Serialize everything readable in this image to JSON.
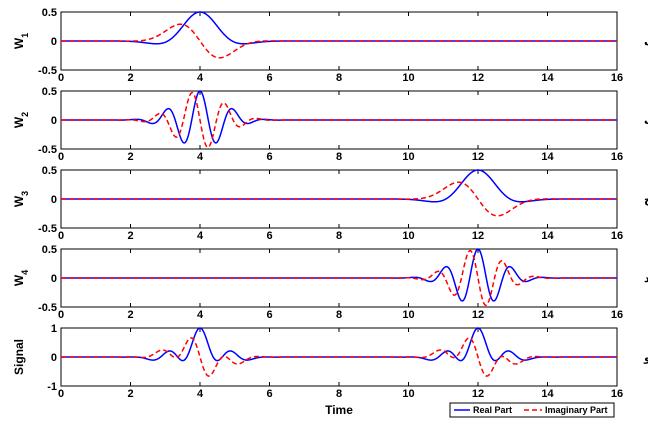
{
  "chart_data": {
    "type": "line",
    "xlabel": "Time",
    "xlim": [
      0,
      16
    ],
    "xticks": [
      0,
      2,
      4,
      6,
      8,
      10,
      12,
      14,
      16
    ],
    "legend": {
      "placement": "bottom-right",
      "entries": [
        {
          "name": "Real Part",
          "color": "#0000ff",
          "style": "solid"
        },
        {
          "name": "Imaginary Part",
          "color": "#ff0000",
          "style": "dashed"
        }
      ]
    },
    "colors": {
      "real": "#0000ff",
      "imag": "#ff0000"
    },
    "panels": [
      {
        "ylabel": "W",
        "ylabel_sub": "1",
        "tag": "(الف",
        "ylim": [
          -0.5,
          0.5
        ],
        "yticks": [
          "0.5",
          "0",
          "-0.5"
        ],
        "components": [
          {
            "t0": 4,
            "amp": 0.5,
            "freq": 0.27,
            "sigma": 0.68
          }
        ]
      },
      {
        "ylabel": "W",
        "ylabel_sub": "2",
        "tag": "(ب",
        "ylim": [
          -0.5,
          0.5
        ],
        "yticks": [
          "0.5",
          "0",
          "-0.5"
        ],
        "components": [
          {
            "t0": 4,
            "amp": 0.5,
            "freq": 1.05,
            "sigma": 0.68
          }
        ]
      },
      {
        "ylabel": "W",
        "ylabel_sub": "3",
        "tag": "(ج",
        "ylim": [
          -0.5,
          0.5
        ],
        "yticks": [
          "0.5",
          "0",
          "-0.5"
        ],
        "components": [
          {
            "t0": 12,
            "amp": 0.5,
            "freq": 0.27,
            "sigma": 0.68
          }
        ]
      },
      {
        "ylabel": "W",
        "ylabel_sub": "4",
        "tag": "(د",
        "ylim": [
          -0.5,
          0.5
        ],
        "yticks": [
          "0.5",
          "0",
          "-0.5"
        ],
        "components": [
          {
            "t0": 12,
            "amp": 0.5,
            "freq": 1.05,
            "sigma": 0.68
          }
        ]
      },
      {
        "ylabel": "Signal",
        "ylabel_sub": "",
        "tag": "(و",
        "ylim": [
          -1,
          1
        ],
        "yticks": [
          "1",
          "0",
          "-1"
        ],
        "components": [
          {
            "t0": 4,
            "amp": 0.5,
            "freq": 0.27,
            "sigma": 0.68
          },
          {
            "t0": 4,
            "amp": 0.5,
            "freq": 1.05,
            "sigma": 0.68
          },
          {
            "t0": 12,
            "amp": 0.5,
            "freq": 0.27,
            "sigma": 0.68
          },
          {
            "t0": 12,
            "amp": 0.5,
            "freq": 1.05,
            "sigma": 0.68
          }
        ]
      }
    ]
  }
}
